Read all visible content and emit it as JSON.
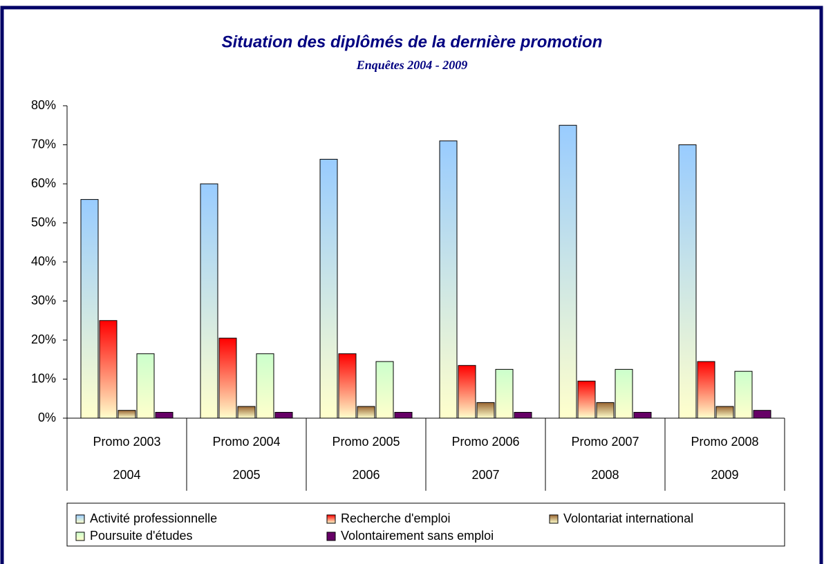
{
  "chart_data": {
    "type": "bar",
    "title": "Situation des diplômés de la dernière promotion",
    "subtitle": "Enquêtes 2004 - 2009",
    "categories": [
      "Promo 2003",
      "Promo 2004",
      "Promo 2005",
      "Promo 2006",
      "Promo 2007",
      "Promo 2008"
    ],
    "category_years": [
      "2004",
      "2005",
      "2006",
      "2007",
      "2008",
      "2009"
    ],
    "series": [
      {
        "name": "Activité professionnelle",
        "color": "#99ccff",
        "values": [
          56,
          60,
          66.3,
          71,
          75,
          70
        ]
      },
      {
        "name": "Recherche d'emploi",
        "color": "#ff0000",
        "values": [
          25,
          20.5,
          16.5,
          13.5,
          9.5,
          14.5
        ]
      },
      {
        "name": "Volontariat international",
        "color": "#996633",
        "values": [
          2,
          3,
          3,
          4,
          4,
          3
        ]
      },
      {
        "name": "Poursuite d'études",
        "color": "#ccffcc",
        "values": [
          16.5,
          16.5,
          14.5,
          12.5,
          12.5,
          12
        ]
      },
      {
        "name": "Volontairement sans emploi",
        "color": "#660066",
        "values": [
          1.5,
          1.5,
          1.5,
          1.5,
          1.5,
          2
        ]
      }
    ],
    "ylim": [
      0,
      80
    ],
    "yticks": [
      {
        "value": 0,
        "label": "0%"
      },
      {
        "value": 10,
        "label": "10%"
      },
      {
        "value": 20,
        "label": "20%"
      },
      {
        "value": 30,
        "label": "30%"
      },
      {
        "value": 40,
        "label": "40%"
      },
      {
        "value": 50,
        "label": "50%"
      },
      {
        "value": 60,
        "label": "60%"
      },
      {
        "value": 70,
        "label": "70%"
      },
      {
        "value": 80,
        "label": "80%"
      }
    ],
    "grid": false,
    "legend": "bottom"
  }
}
